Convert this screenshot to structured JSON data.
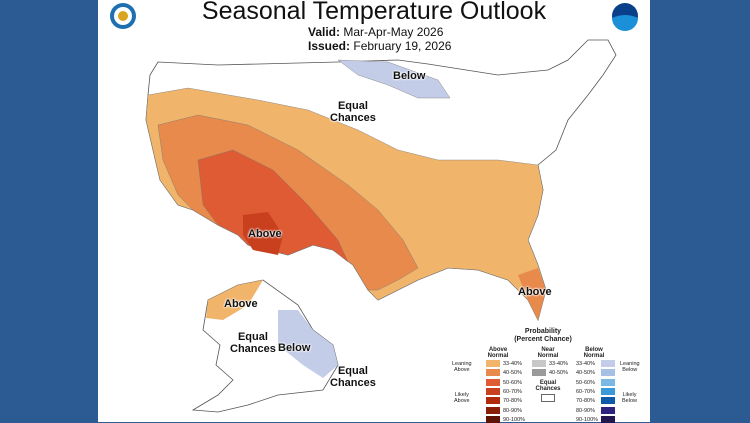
{
  "title": "Seasonal Temperature Outlook",
  "valid_label": "Valid:",
  "valid_value": "Mar-Apr-May 2026",
  "issued_label": "Issued:",
  "issued_value": "February 19, 2026",
  "logos": {
    "left": "doc-seal-icon",
    "right": "noaa-logo-icon"
  },
  "map_labels": {
    "below_conus": "Below",
    "equal_chances": "Equal\nChances",
    "above_sw": "Above",
    "above_fl": "Above",
    "above_ak": "Above",
    "ak_equal": "Equal\nChances",
    "ak_below": "Below",
    "ak_equal_se": "Equal\nChances"
  },
  "colors": {
    "background": "#2c5b94",
    "above_33_40": "#f0b46b",
    "above_40_50": "#e88a4c",
    "above_50_60": "#de5b33",
    "above_60_70": "#c9401f",
    "below_33_40": "#c3cde8"
  },
  "legend": {
    "title1": "Probability",
    "title2": "(Percent Chance)",
    "above_header": "Above\nNormal",
    "near_header": "Near\nNormal",
    "below_header": "Below\nNormal",
    "leaning_above": "Leaning\nAbove",
    "likely_above": "Likely\nAbove",
    "leaning_below": "Leaning\nBelow",
    "likely_below": "Likely\nBelow",
    "equal_chances": "Equal\nChances",
    "above": [
      {
        "range": "33-40%",
        "color": "#f0b46b"
      },
      {
        "range": "40-50%",
        "color": "#e88a4c"
      },
      {
        "range": "50-60%",
        "color": "#de5b33"
      },
      {
        "range": "60-70%",
        "color": "#c9401f"
      },
      {
        "range": "70-80%",
        "color": "#b02a0c"
      },
      {
        "range": "80-90%",
        "color": "#8a1f08"
      },
      {
        "range": "90-100%",
        "color": "#5e1404"
      }
    ],
    "near": [
      {
        "range": "33-40%",
        "color": "#c8c8c8"
      },
      {
        "range": "40-50%",
        "color": "#9a9a9a"
      }
    ],
    "below": [
      {
        "range": "33-40%",
        "color": "#c3cde8"
      },
      {
        "range": "40-50%",
        "color": "#a6c0e3"
      },
      {
        "range": "50-60%",
        "color": "#7ab8e6"
      },
      {
        "range": "60-70%",
        "color": "#3a9ad9"
      },
      {
        "range": "70-80%",
        "color": "#0e5ca8"
      },
      {
        "range": "80-90%",
        "color": "#2e2480"
      },
      {
        "range": "90-100%",
        "color": "#22164f"
      }
    ]
  }
}
